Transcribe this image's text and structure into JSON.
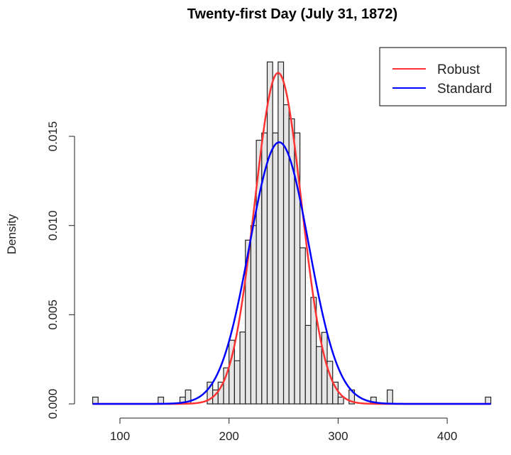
{
  "chart_data": {
    "type": "histogram",
    "title": "Twenty-first Day (July 31, 1872)",
    "xlabel": "",
    "ylabel": "Density",
    "xlim": [
      75,
      440
    ],
    "ylim": [
      0,
      0.0195
    ],
    "x_ticks": [
      100,
      200,
      300,
      400
    ],
    "y_ticks": [
      0,
      0.005,
      0.01,
      0.015
    ],
    "y_tick_labels": [
      "0.000",
      "0.005",
      "0.010",
      "0.015"
    ],
    "bin_width": 5,
    "bars": [
      {
        "x0": 75,
        "density": 0.00038
      },
      {
        "x0": 135,
        "density": 0.00038
      },
      {
        "x0": 155,
        "density": 0.00038
      },
      {
        "x0": 160,
        "density": 0.00078
      },
      {
        "x0": 180,
        "density": 0.00122
      },
      {
        "x0": 185,
        "density": 0.00078
      },
      {
        "x0": 190,
        "density": 0.00122
      },
      {
        "x0": 195,
        "density": 0.00202
      },
      {
        "x0": 200,
        "density": 0.00357
      },
      {
        "x0": 205,
        "density": 0.00242
      },
      {
        "x0": 210,
        "density": 0.00403
      },
      {
        "x0": 215,
        "density": 0.00918
      },
      {
        "x0": 220,
        "density": 0.01
      },
      {
        "x0": 225,
        "density": 0.01478
      },
      {
        "x0": 230,
        "density": 0.01519
      },
      {
        "x0": 235,
        "density": 0.01917
      },
      {
        "x0": 240,
        "density": 0.01519
      },
      {
        "x0": 245,
        "density": 0.01917
      },
      {
        "x0": 250,
        "density": 0.01677
      },
      {
        "x0": 255,
        "density": 0.01598
      },
      {
        "x0": 260,
        "density": 0.01519
      },
      {
        "x0": 265,
        "density": 0.00875
      },
      {
        "x0": 270,
        "density": 0.0044
      },
      {
        "x0": 275,
        "density": 0.00597
      },
      {
        "x0": 280,
        "density": 0.00321
      },
      {
        "x0": 285,
        "density": 0.00401
      },
      {
        "x0": 290,
        "density": 0.00239
      },
      {
        "x0": 295,
        "density": 0.00122
      },
      {
        "x0": 300,
        "density": 0.00038
      },
      {
        "x0": 310,
        "density": 0.00078
      },
      {
        "x0": 330,
        "density": 0.00038
      },
      {
        "x0": 345,
        "density": 0.00078
      },
      {
        "x0": 435,
        "density": 0.00038
      }
    ],
    "series": [
      {
        "name": "Robust",
        "type": "normal-density",
        "mean": 245,
        "sd": 21.5,
        "color": "#ff3333"
      },
      {
        "name": "Standard",
        "type": "normal-density",
        "mean": 246,
        "sd": 27.2,
        "color": "#0000ff"
      }
    ],
    "legend": {
      "position": "top-right",
      "entries": [
        "Robust",
        "Standard"
      ]
    },
    "bar_fill": "#e6e6e6",
    "grid": false
  }
}
